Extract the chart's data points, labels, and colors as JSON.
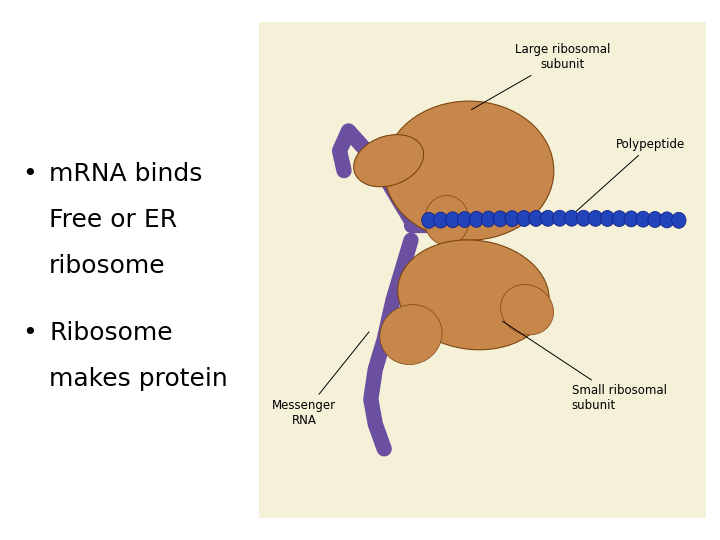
{
  "background_color": "#ffffff",
  "bullet1_lines": [
    "mRNA binds",
    "Free or ER",
    "ribosome"
  ],
  "bullet2_lines": [
    "Ribosome",
    "makes protein"
  ],
  "text_fontsize": 18,
  "text_color": "#000000",
  "diagram_box_color": "#f5f0d8",
  "label_large_ribosomal": "Large ribosomal\nsubunit",
  "label_polypeptide": "Polypeptide",
  "label_messenger_rna": "Messenger\nRNA",
  "label_small_ribosomal": "Small ribosomal\nsubunit",
  "ribosome_color": "#c8874a",
  "ribosome_edge": "#7a4510",
  "mrna_color": "#6b4fa0",
  "polypeptide_color": "#2244bb",
  "polypeptide_edge": "#112288",
  "label_fontsize": 8.5
}
